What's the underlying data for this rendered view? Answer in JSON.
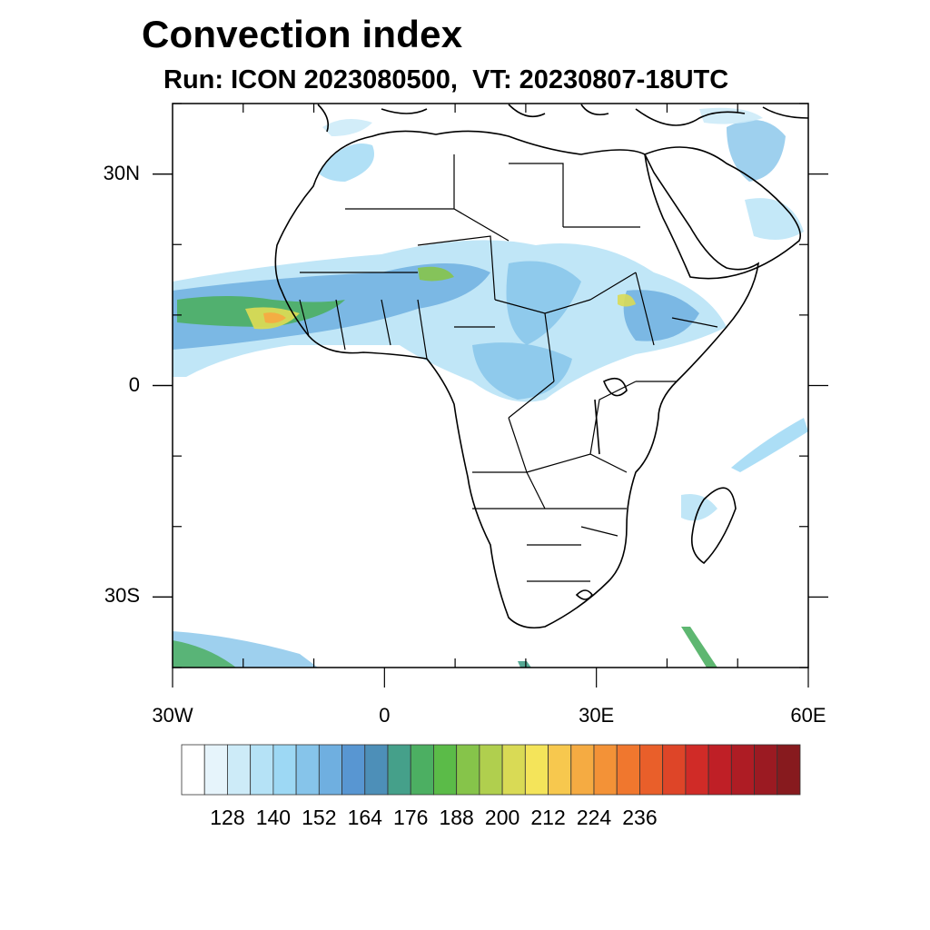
{
  "title": "Convection index",
  "subtitle": "Run: ICON 2023080500,  VT: 20230807-18UTC",
  "map": {
    "lon_range": [
      -30,
      60
    ],
    "lat_range": [
      -40,
      40
    ],
    "lat_ticks": [
      {
        "value": 30,
        "label": "30N"
      },
      {
        "value": 0,
        "label": "0"
      },
      {
        "value": -30,
        "label": "30S"
      }
    ],
    "lon_ticks": [
      {
        "value": -30,
        "label": "30W"
      },
      {
        "value": 0,
        "label": "0"
      },
      {
        "value": 30,
        "label": "30E"
      },
      {
        "value": 60,
        "label": "60E"
      }
    ]
  },
  "colorbar": {
    "colors": [
      "#ffffff",
      "#e6f4fb",
      "#cdebf8",
      "#b5e2f6",
      "#9dd8f4",
      "#86c4ea",
      "#6fafe0",
      "#5896d2",
      "#4d8fb8",
      "#45a08a",
      "#4caf62",
      "#5bbb48",
      "#86c44a",
      "#b0cf4e",
      "#d9da55",
      "#f4e45a",
      "#f7c84e",
      "#f5ab42",
      "#f39237",
      "#f0772e",
      "#e95f2a",
      "#de4528",
      "#d02b27",
      "#bf1f26",
      "#ae1c24",
      "#9b1a22",
      "#871a1e"
    ],
    "labels": [
      "128",
      "140",
      "152",
      "164",
      "176",
      "188",
      "200",
      "212",
      "224",
      "236"
    ]
  }
}
